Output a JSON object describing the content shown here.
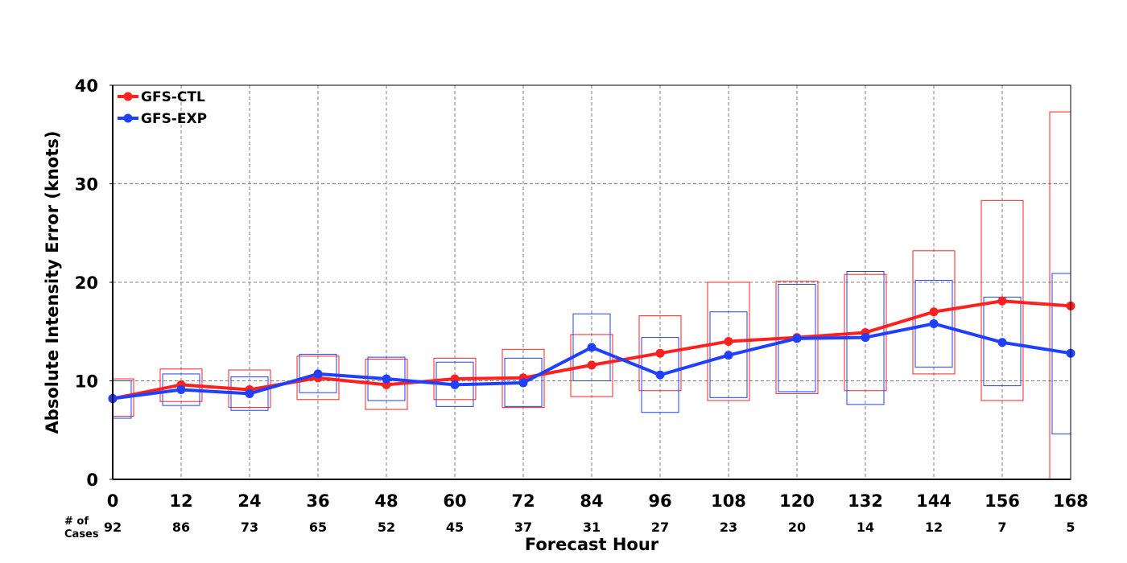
{
  "chart_data": {
    "type": "line",
    "title": "",
    "xlabel": "Forecast Hour",
    "ylabel": "Absolute Intensity Error (knots)",
    "cases_label_line1": "# of",
    "cases_label_line2": "Cases",
    "x": [
      0,
      12,
      24,
      36,
      48,
      60,
      72,
      84,
      96,
      108,
      120,
      132,
      144,
      156,
      168
    ],
    "x_tick_labels": [
      "0",
      "12",
      "24",
      "36",
      "48",
      "60",
      "72",
      "84",
      "96",
      "108",
      "120",
      "132",
      "144",
      "156",
      "168"
    ],
    "cases": [
      "92",
      "86",
      "73",
      "65",
      "52",
      "45",
      "37",
      "31",
      "27",
      "23",
      "20",
      "14",
      "12",
      "7",
      "5"
    ],
    "xlim": [
      0,
      168
    ],
    "ylim": [
      0,
      40
    ],
    "y_ticks": [
      0,
      10,
      20,
      30,
      40
    ],
    "y_tick_labels": [
      "0",
      "10",
      "20",
      "30",
      "40"
    ],
    "grid": true,
    "legend_position": "top-left",
    "series": [
      {
        "name": "GFS-CTL",
        "color": "#ff2020",
        "values": [
          8.2,
          9.6,
          9.1,
          10.3,
          9.6,
          10.2,
          10.3,
          11.6,
          12.8,
          14.0,
          14.4,
          14.9,
          17.0,
          18.1,
          17.6
        ],
        "ci_low": [
          6.4,
          7.9,
          7.3,
          8.1,
          7.1,
          8.1,
          7.3,
          8.4,
          9.0,
          8.0,
          8.7,
          9.0,
          10.7,
          8.0,
          0.0
        ],
        "ci_high": [
          10.2,
          11.2,
          11.1,
          12.5,
          12.2,
          12.3,
          13.2,
          14.7,
          16.6,
          20.0,
          20.1,
          20.8,
          23.2,
          28.3,
          37.3
        ]
      },
      {
        "name": "GFS-EXP",
        "color": "#2040ff",
        "values": [
          8.2,
          9.1,
          8.7,
          10.7,
          10.2,
          9.6,
          9.8,
          13.4,
          10.6,
          12.6,
          14.3,
          14.4,
          15.8,
          13.9,
          12.8
        ],
        "ci_low": [
          6.2,
          7.5,
          7.0,
          8.8,
          8.0,
          7.4,
          7.4,
          10.0,
          6.8,
          8.3,
          8.9,
          7.6,
          11.4,
          9.5,
          4.6
        ],
        "ci_high": [
          10.0,
          10.7,
          10.4,
          12.7,
          12.4,
          11.9,
          12.3,
          16.8,
          14.4,
          17.0,
          19.8,
          21.1,
          20.2,
          18.5,
          20.9
        ]
      }
    ]
  }
}
